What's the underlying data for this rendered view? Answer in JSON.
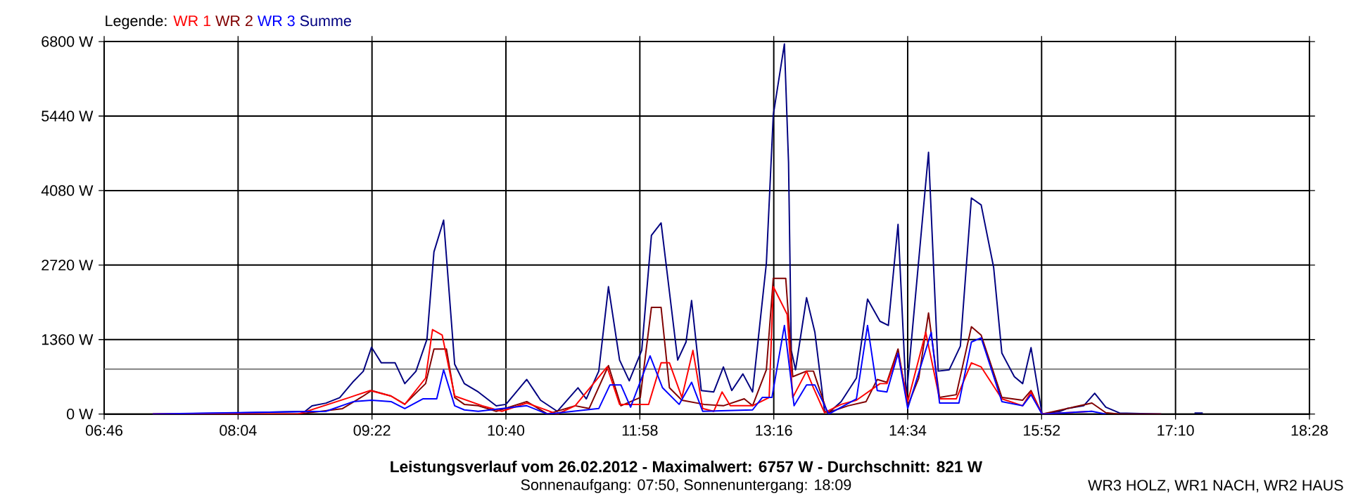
{
  "chart_data": {
    "type": "line",
    "title": "Leistungsverlauf vom 26.02.2012 - Maximalwert: 6757 W - Durchschnitt: 821 W",
    "subtitle": "Sonnenaufgang: 07:50, Sonnenuntergang: 18:09",
    "annotations": [
      "WR3 HOLZ, WR1 NACH, WR2 HAUS"
    ],
    "legend_title": "Legende:",
    "legend": "top left",
    "grid": true,
    "marker": "none",
    "line_style": "solid",
    "xlim": [
      6.7667,
      18.4667
    ],
    "xticks": [
      {
        "value": 6.7667,
        "label": "06:46"
      },
      {
        "value": 8.0667,
        "label": "08:04"
      },
      {
        "value": 9.3667,
        "label": "09:22"
      },
      {
        "value": 10.6667,
        "label": "10:40"
      },
      {
        "value": 11.9667,
        "label": "11:58"
      },
      {
        "value": 13.2667,
        "label": "13:16"
      },
      {
        "value": 14.5667,
        "label": "14:34"
      },
      {
        "value": 15.8667,
        "label": "15:52"
      },
      {
        "value": 17.1667,
        "label": "17:10"
      },
      {
        "value": 18.4667,
        "label": "18:28"
      }
    ],
    "ylim": [
      0,
      6800
    ],
    "yticks": [
      {
        "value": 0,
        "label": "0 W"
      },
      {
        "value": 1360,
        "label": "1360 W"
      },
      {
        "value": 2720,
        "label": "2720 W"
      },
      {
        "value": 4080,
        "label": "4080 W"
      },
      {
        "value": 5440,
        "label": "5440 W"
      },
      {
        "value": 6800,
        "label": "6800 W"
      }
    ],
    "ref_lines": [
      {
        "axis": "y",
        "value": 821,
        "color": "#808080"
      }
    ],
    "series": [
      {
        "name": "Summe",
        "color": "#000080",
        "x": [
          7.237,
          8.018,
          8.717,
          8.784,
          8.919,
          9.053,
          9.188,
          9.282,
          9.362,
          9.457,
          9.591,
          9.685,
          9.793,
          9.9,
          9.968,
          10.062,
          10.169,
          10.263,
          10.398,
          10.573,
          10.667,
          10.869,
          11.003,
          11.165,
          11.366,
          11.447,
          11.568,
          11.662,
          11.77,
          11.864,
          11.985,
          12.079,
          12.173,
          12.334,
          12.415,
          12.469,
          12.563,
          12.684,
          12.778,
          12.859,
          12.967,
          13.061,
          13.195,
          13.262,
          13.37,
          13.41,
          13.437,
          13.478,
          13.585,
          13.666,
          13.76,
          13.8,
          13.921,
          14.069,
          14.177,
          14.298,
          14.379,
          14.473,
          14.553,
          14.769,
          14.863,
          14.97,
          15.078,
          15.185,
          15.28,
          15.401,
          15.481,
          15.602,
          15.683,
          15.764,
          15.871,
          16.046,
          16.113,
          16.275,
          16.382,
          16.49,
          16.624,
          17.028,
          17.2,
          17.351,
          17.431
        ],
        "values": [
          0,
          20,
          50,
          150,
          200,
          300,
          600,
          780,
          1220,
          935,
          935,
          555,
          780,
          1365,
          2960,
          3540,
          910,
          556,
          404,
          150,
          177,
          632,
          253,
          50,
          480,
          278,
          784,
          2326,
          986,
          607,
          1163,
          3261,
          3489,
          986,
          1315,
          2073,
          430,
          404,
          860,
          430,
          733,
          404,
          2755,
          5460,
          6757,
          4600,
          1163,
          809,
          2124,
          1491,
          50,
          25,
          228,
          657,
          2098,
          1694,
          1618,
          3463,
          303,
          4778,
          784,
          809,
          1239,
          3944,
          3817,
          2680,
          1112,
          683,
          556,
          1213,
          0,
          50,
          101,
          152,
          379,
          126,
          20,
          0,
          null,
          20,
          20
        ]
      },
      {
        "name": "WR 2",
        "color": "#800000",
        "x": [
          7.237,
          8.65,
          9.08,
          9.282,
          9.362,
          9.551,
          9.685,
          9.887,
          9.968,
          10.089,
          10.169,
          10.263,
          10.398,
          10.573,
          10.869,
          11.07,
          11.339,
          11.474,
          11.662,
          11.783,
          11.971,
          12.079,
          12.173,
          12.254,
          12.375,
          12.59,
          12.778,
          12.98,
          13.061,
          13.195,
          13.262,
          13.383,
          13.451,
          13.585,
          13.652,
          13.787,
          13.989,
          14.163,
          14.271,
          14.365,
          14.473,
          14.567,
          14.674,
          14.769,
          14.876,
          15.038,
          15.185,
          15.28,
          15.481,
          15.683,
          15.764,
          15.871,
          16.355,
          16.49,
          16.624,
          17.028
        ],
        "values": [
          0,
          0,
          100,
          330,
          430,
          330,
          180,
          556,
          1188,
          1188,
          303,
          177,
          152,
          50,
          228,
          0,
          152,
          101,
          885,
          152,
          303,
          1947,
          1947,
          480,
          253,
          177,
          152,
          278,
          152,
          809,
          2477,
          2477,
          683,
          784,
          784,
          25,
          152,
          228,
          632,
          581,
          1188,
          152,
          657,
          1845,
          303,
          354,
          1593,
          1441,
          303,
          253,
          430,
          0,
          202,
          25,
          0,
          0
        ]
      },
      {
        "name": "WR 1",
        "color": "#ff0000",
        "x": [
          7.237,
          8.65,
          9.147,
          9.349,
          9.551,
          9.685,
          9.887,
          9.954,
          10.048,
          10.169,
          10.438,
          10.627,
          10.869,
          11.165,
          11.339,
          11.649,
          11.77,
          12.052,
          12.173,
          12.254,
          12.375,
          12.482,
          12.577,
          12.684,
          12.765,
          12.845,
          13.061,
          13.222,
          13.262,
          13.397,
          13.451,
          13.585,
          13.652,
          13.76,
          13.921,
          14.069,
          14.298,
          14.365,
          14.473,
          14.567,
          14.742,
          14.876,
          15.038,
          15.185,
          15.28,
          15.481,
          15.683,
          15.764,
          15.871,
          16.355
        ],
        "values": [
          0,
          0,
          303,
          430,
          330,
          177,
          657,
          1542,
          1441,
          330,
          152,
          50,
          202,
          0,
          152,
          860,
          177,
          177,
          935,
          935,
          303,
          1163,
          101,
          50,
          404,
          152,
          152,
          303,
          2326,
          1820,
          303,
          784,
          480,
          25,
          177,
          253,
          556,
          556,
          1112,
          228,
          1491,
          278,
          278,
          935,
          860,
          278,
          152,
          404,
          0,
          50
        ]
      },
      {
        "name": "WR 3",
        "color": "#0000ff",
        "x": [
          7.237,
          8.919,
          9.188,
          9.362,
          9.551,
          9.685,
          9.86,
          9.995,
          10.062,
          10.169,
          10.263,
          10.398,
          10.869,
          11.07,
          11.568,
          11.676,
          11.783,
          11.877,
          12.066,
          12.187,
          12.348,
          12.469,
          12.577,
          13.061,
          13.155,
          13.249,
          13.37,
          13.464,
          13.585,
          13.666,
          13.8,
          14.069,
          14.177,
          14.271,
          14.365,
          14.473,
          14.567,
          14.795,
          14.876,
          15.064,
          15.185,
          15.28,
          15.481,
          15.683,
          15.764,
          15.871,
          16.355,
          16.49
        ],
        "values": [
          0,
          50,
          228,
          253,
          228,
          101,
          278,
          278,
          809,
          152,
          76,
          50,
          152,
          0,
          101,
          531,
          531,
          126,
          1062,
          480,
          177,
          581,
          50,
          76,
          303,
          303,
          1618,
          152,
          531,
          531,
          0,
          278,
          1618,
          430,
          404,
          1112,
          101,
          1491,
          202,
          202,
          1315,
          1390,
          228,
          152,
          354,
          0,
          50,
          0
        ]
      }
    ]
  }
}
